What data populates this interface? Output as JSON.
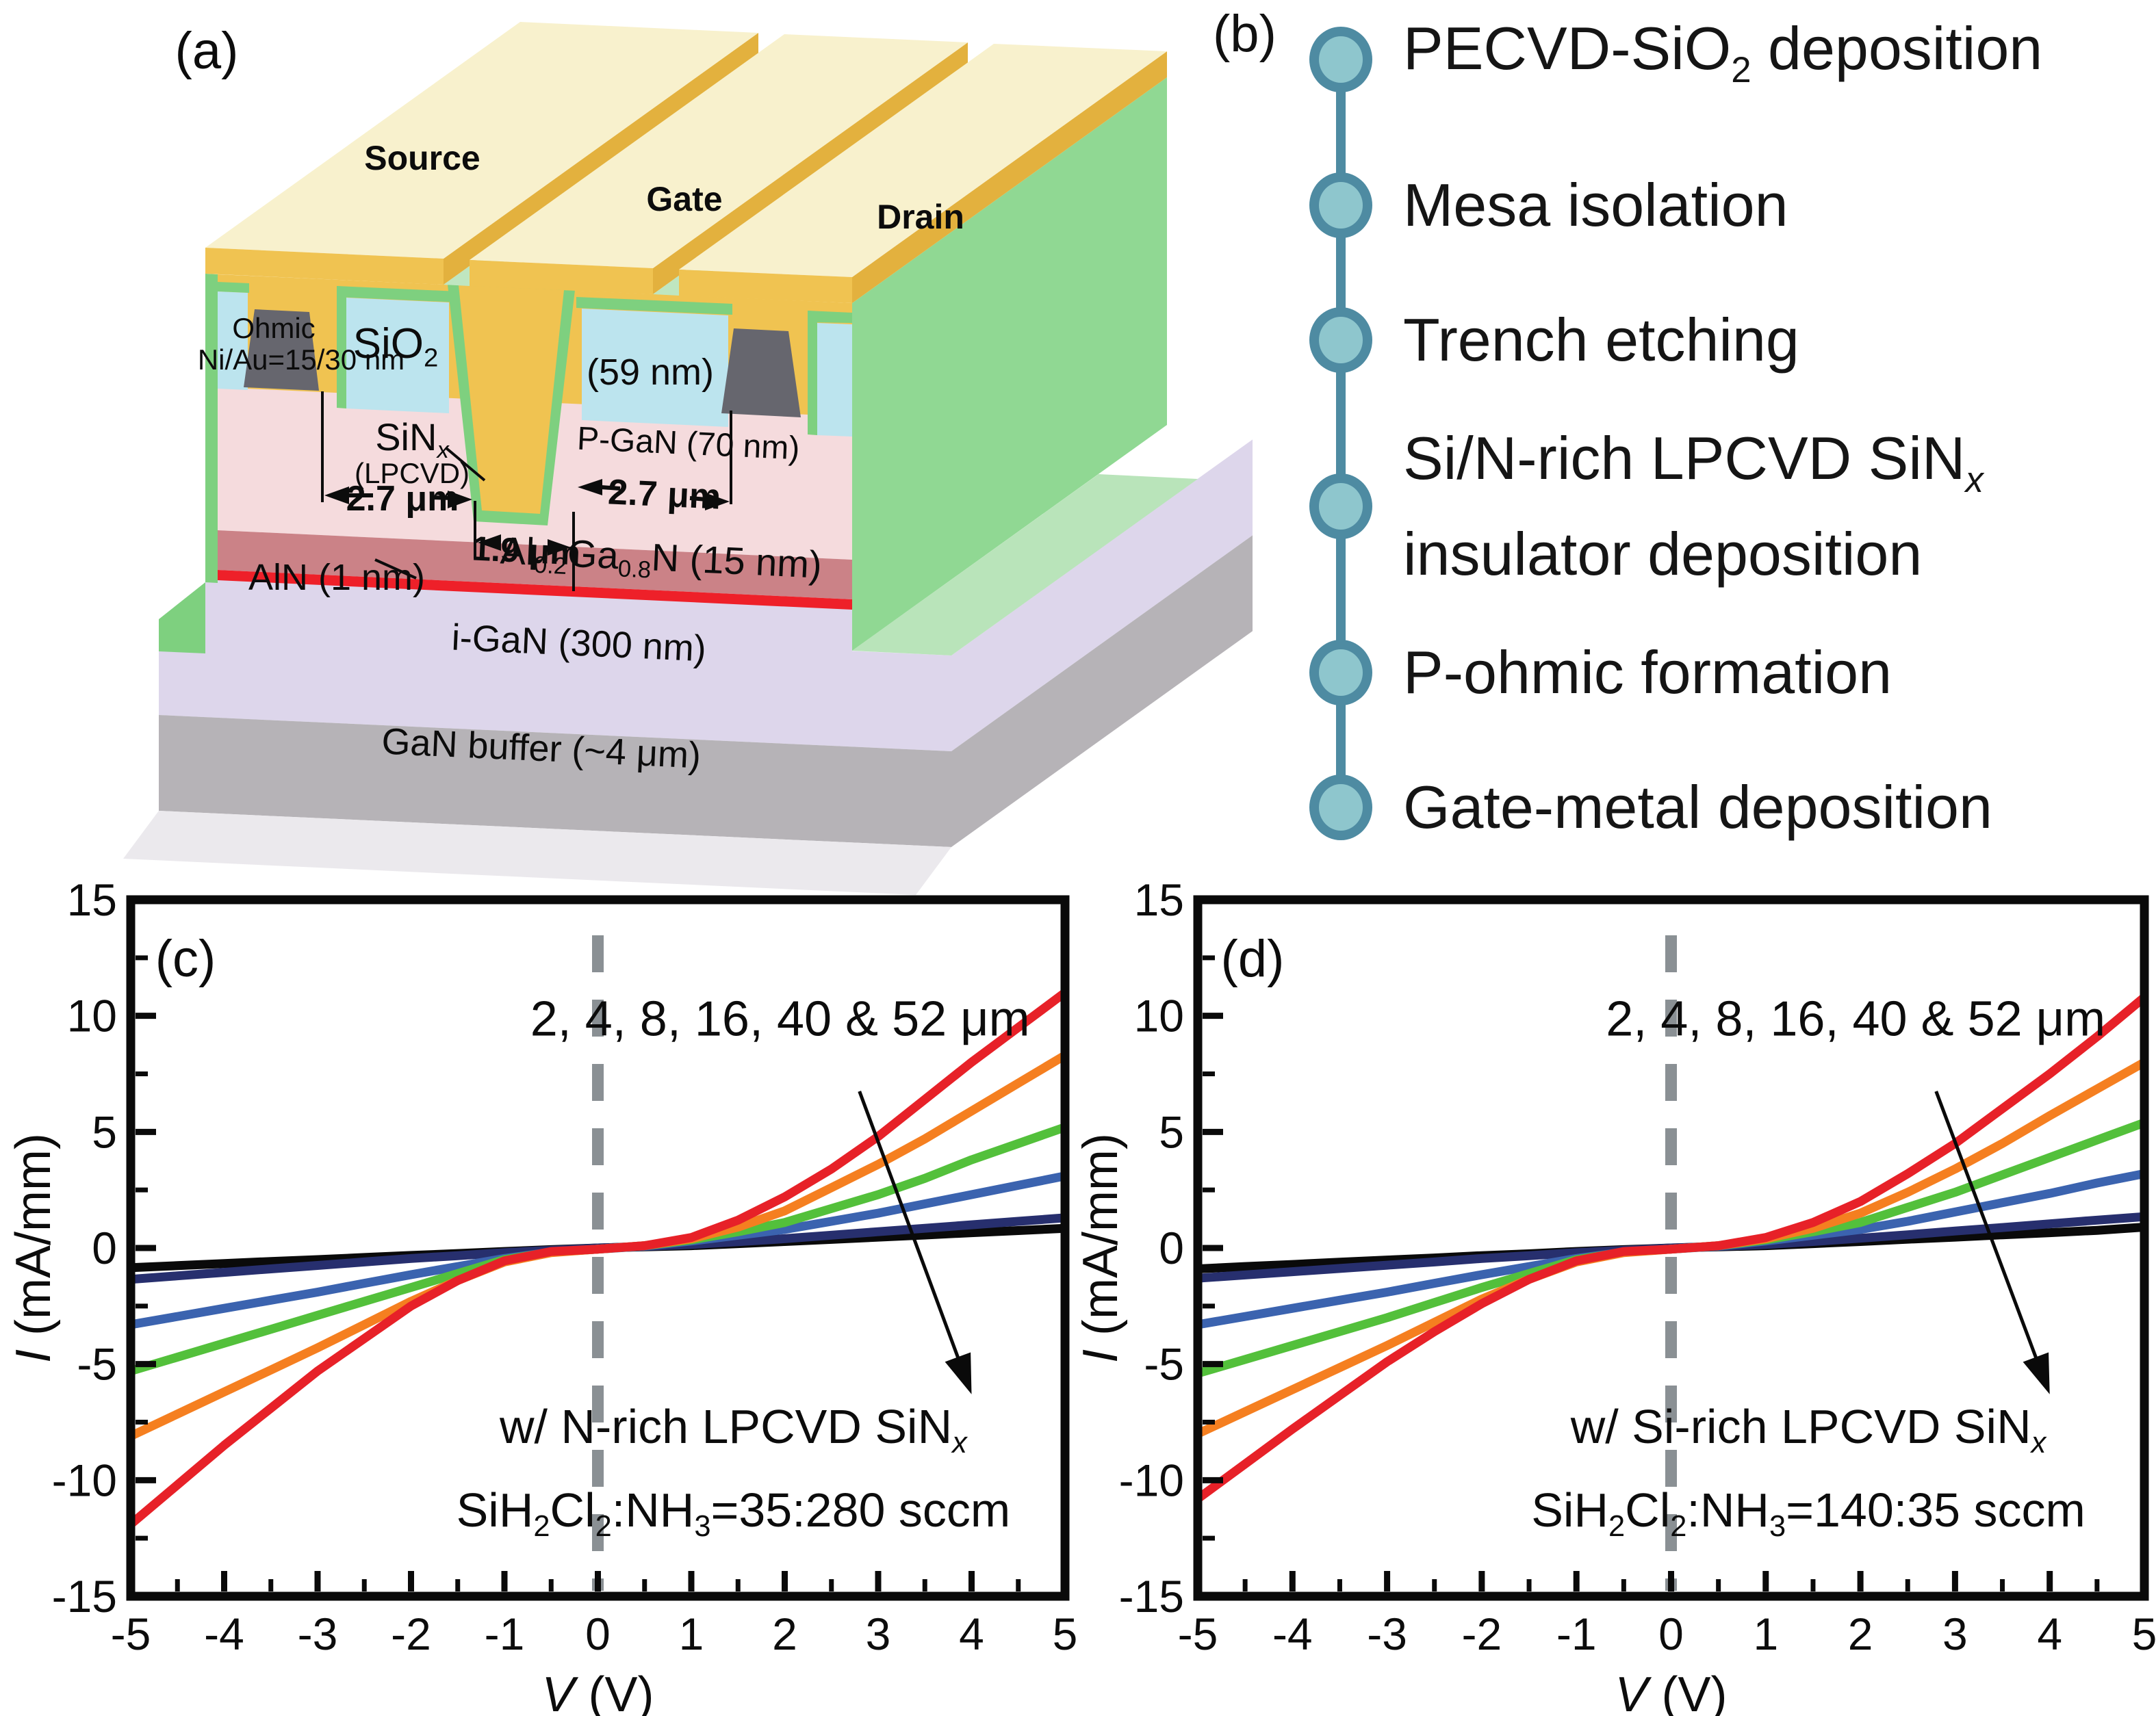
{
  "figure": {
    "background": "#ffffff"
  },
  "panel_a": {
    "tag": "(a)",
    "labels": {
      "source": "Source",
      "gate": "Gate",
      "drain": "Drain",
      "ohmic": "Ohmic",
      "ni_au": "Ni/Au=15/30 nm",
      "sio2": "SiO[s]2[/s]",
      "sio2_thickness": "(59 nm)",
      "sinx": "SiN[s][i]x[/i][/s]",
      "sinx_method": "(LPCVD)",
      "pgan": "P-GaN (70 nm)",
      "dim_source_gate": "2.7 μm",
      "dim_gate_width": "1.9 μm",
      "dim_gate_drain": "2.7 μm",
      "algan": "Al[s]0.2[/s]Ga[s]0.8[/s]N (15 nm)",
      "aln": "AlN (1 nm)",
      "igan": "i-GaN (300 nm)",
      "buffer": "GaN buffer (~4 μm)"
    },
    "colors": {
      "cream": "#f8f1cd",
      "gold": "#f0c351",
      "goldDark": "#e3b13e",
      "mint": "#bfe6c0",
      "liner": "#7ed07f",
      "sideGreen": "#90d893",
      "baseTopGreen": "#b9e4ba",
      "oxideBlue": "#bce4ee",
      "nitridePink": "#f5dbdd",
      "ohmicGray": "#66666e",
      "alganRose": "#cb8287",
      "alnRed": "#ee2029",
      "iganLavender": "#ddd6eb",
      "bufferGray": "#b6b3b7",
      "bottomGray": "#ebe9ed",
      "ink": "#0c0c0c"
    }
  },
  "panel_b": {
    "tag": "(b)",
    "accent": "#4e8ba2",
    "node_fill": "#8ec6cd",
    "steps": [
      {
        "lines": [
          "PECVD-SiO[s]2[/s] deposition"
        ]
      },
      {
        "lines": [
          "Mesa isolation"
        ]
      },
      {
        "lines": [
          "Trench etching"
        ]
      },
      {
        "lines": [
          "Si/N-rich LPCVD SiN[s][i]x[/i][/s]",
          "insulator deposition"
        ]
      },
      {
        "lines": [
          "P-ohmic formation"
        ]
      },
      {
        "lines": [
          "Gate-metal deposition"
        ]
      }
    ]
  },
  "chart_data": [
    {
      "id": "c",
      "type": "line",
      "panel_tag": "(c)",
      "xlabel": "[i]V[/i] (V)",
      "ylabel": "[i]I[/i] (mA/mm)",
      "xlim": [
        -5,
        5
      ],
      "ylim": [
        -15,
        15
      ],
      "x_tick_labels": [
        -5,
        -4,
        -3,
        -2,
        -1,
        0,
        1,
        2,
        3,
        4,
        5
      ],
      "y_tick_labels": [
        15,
        10,
        5,
        0,
        -5,
        -10,
        -15
      ],
      "x_minor_step": 0.5,
      "y_minor_step": 2.5,
      "grid": false,
      "dashed_vline_x": 0,
      "dashed_color": "#8a9094",
      "frame_color": "#0a0a0a",
      "annotation_sizes": "2, 4, 8, 16, 40 & 52 μm",
      "arrow_meaning": "order of curves from 2 μm (steepest) to 52 μm (flattest)",
      "info_lines": [
        "w/ N-rich LPCVD SiN[s][i]x[/i][/s]",
        "SiH[s]2[/s]Cl[s]2[/s]:NH[s]3[/s]=35:280 sccm"
      ],
      "x_start": -5,
      "x_step": 0.5,
      "series": [
        {
          "name": "2 μm",
          "color": "#e72128",
          "values": [
            -11.9,
            -10.2,
            -8.5,
            -6.9,
            -5.3,
            -3.9,
            -2.5,
            -1.4,
            -0.55,
            -0.15,
            -0.05,
            0.1,
            0.45,
            1.2,
            2.2,
            3.4,
            4.8,
            6.4,
            8.0,
            9.5,
            11.0
          ]
        },
        {
          "name": "4 μm",
          "color": "#f57f20",
          "values": [
            -8.1,
            -7.15,
            -6.2,
            -5.25,
            -4.3,
            -3.3,
            -2.3,
            -1.4,
            -0.6,
            -0.2,
            -0.05,
            0.1,
            0.4,
            0.9,
            1.6,
            2.6,
            3.6,
            4.7,
            5.9,
            7.1,
            8.3
          ]
        },
        {
          "name": "8 μm",
          "color": "#53c03b",
          "values": [
            -5.3,
            -4.7,
            -4.1,
            -3.5,
            -2.9,
            -2.3,
            -1.7,
            -1.1,
            -0.5,
            -0.18,
            -0.05,
            0.1,
            0.35,
            0.7,
            1.1,
            1.7,
            2.3,
            3.0,
            3.8,
            4.5,
            5.2
          ]
        },
        {
          "name": "16 μm",
          "color": "#3b63af",
          "values": [
            -3.3,
            -2.95,
            -2.6,
            -2.25,
            -1.9,
            -1.52,
            -1.15,
            -0.8,
            -0.45,
            -0.18,
            -0.05,
            0.08,
            0.3,
            0.55,
            0.8,
            1.15,
            1.5,
            1.9,
            2.3,
            2.7,
            3.1
          ]
        },
        {
          "name": "40 μm",
          "color": "#272f6e",
          "values": [
            -1.35,
            -1.2,
            -1.05,
            -0.9,
            -0.75,
            -0.6,
            -0.45,
            -0.33,
            -0.2,
            -0.1,
            0,
            0.07,
            0.15,
            0.27,
            0.4,
            0.55,
            0.7,
            0.85,
            1.0,
            1.15,
            1.3
          ]
        },
        {
          "name": "52 μm",
          "color": "#0a0a0a",
          "values": [
            -0.85,
            -0.76,
            -0.67,
            -0.58,
            -0.5,
            -0.41,
            -0.32,
            -0.24,
            -0.15,
            -0.07,
            0,
            0.05,
            0.1,
            0.19,
            0.28,
            0.37,
            0.47,
            0.56,
            0.66,
            0.75,
            0.85
          ]
        }
      ]
    },
    {
      "id": "d",
      "type": "line",
      "panel_tag": "(d)",
      "xlabel": "[i]V[/i] (V)",
      "ylabel": "[i]I[/i] (mA/mm)",
      "xlim": [
        -5,
        5
      ],
      "ylim": [
        -15,
        15
      ],
      "x_tick_labels": [
        -5,
        -4,
        -3,
        -2,
        -1,
        0,
        1,
        2,
        3,
        4,
        5
      ],
      "y_tick_labels": [
        15,
        10,
        5,
        0,
        -5,
        -10,
        -15
      ],
      "x_minor_step": 0.5,
      "y_minor_step": 2.5,
      "grid": false,
      "dashed_vline_x": 0,
      "dashed_color": "#8a9094",
      "frame_color": "#0a0a0a",
      "annotation_sizes": "2, 4, 8, 16, 40 & 52 μm",
      "arrow_meaning": "order of curves from 2 μm (steepest) to 52 μm (flattest)",
      "info_lines": [
        "w/ Si-rich LPCVD SiN[s][i]x[/i][/s]",
        "SiH[s]2[/s]Cl[s]2[/s]:NH[s]3[/s]=140:35 sccm"
      ],
      "x_start": -5,
      "x_step": 0.5,
      "series": [
        {
          "name": "2 μm",
          "color": "#e72128",
          "values": [
            -10.8,
            -9.3,
            -7.8,
            -6.35,
            -4.9,
            -3.6,
            -2.4,
            -1.35,
            -0.55,
            -0.15,
            -0.05,
            0.1,
            0.45,
            1.1,
            2.0,
            3.2,
            4.5,
            6.0,
            7.5,
            9.1,
            10.8
          ]
        },
        {
          "name": "4 μm",
          "color": "#f57f20",
          "values": [
            -8.0,
            -7.05,
            -6.1,
            -5.15,
            -4.2,
            -3.2,
            -2.2,
            -1.35,
            -0.6,
            -0.2,
            -0.05,
            0.1,
            0.4,
            0.85,
            1.5,
            2.4,
            3.4,
            4.5,
            5.7,
            6.85,
            8.0
          ]
        },
        {
          "name": "8 μm",
          "color": "#53c03b",
          "values": [
            -5.4,
            -4.8,
            -4.2,
            -3.6,
            -3.0,
            -2.35,
            -1.7,
            -1.1,
            -0.5,
            -0.18,
            -0.05,
            0.1,
            0.35,
            0.7,
            1.1,
            1.75,
            2.4,
            3.15,
            3.9,
            4.65,
            5.4
          ]
        },
        {
          "name": "16 μm",
          "color": "#3b63af",
          "values": [
            -3.3,
            -2.95,
            -2.6,
            -2.25,
            -1.9,
            -1.52,
            -1.15,
            -0.8,
            -0.45,
            -0.18,
            -0.05,
            0.08,
            0.3,
            0.55,
            0.8,
            1.15,
            1.55,
            1.95,
            2.35,
            2.8,
            3.2
          ]
        },
        {
          "name": "40 μm",
          "color": "#272f6e",
          "values": [
            -1.3,
            -1.16,
            -1.02,
            -0.88,
            -0.74,
            -0.6,
            -0.45,
            -0.33,
            -0.2,
            -0.1,
            0,
            0.07,
            0.15,
            0.28,
            0.42,
            0.57,
            0.73,
            0.88,
            1.04,
            1.2,
            1.35
          ]
        },
        {
          "name": "52 μm",
          "color": "#0a0a0a",
          "values": [
            -0.9,
            -0.8,
            -0.71,
            -0.61,
            -0.52,
            -0.43,
            -0.33,
            -0.25,
            -0.15,
            -0.07,
            0,
            0.05,
            0.1,
            0.19,
            0.28,
            0.38,
            0.47,
            0.57,
            0.66,
            0.76,
            0.9
          ]
        }
      ]
    }
  ]
}
